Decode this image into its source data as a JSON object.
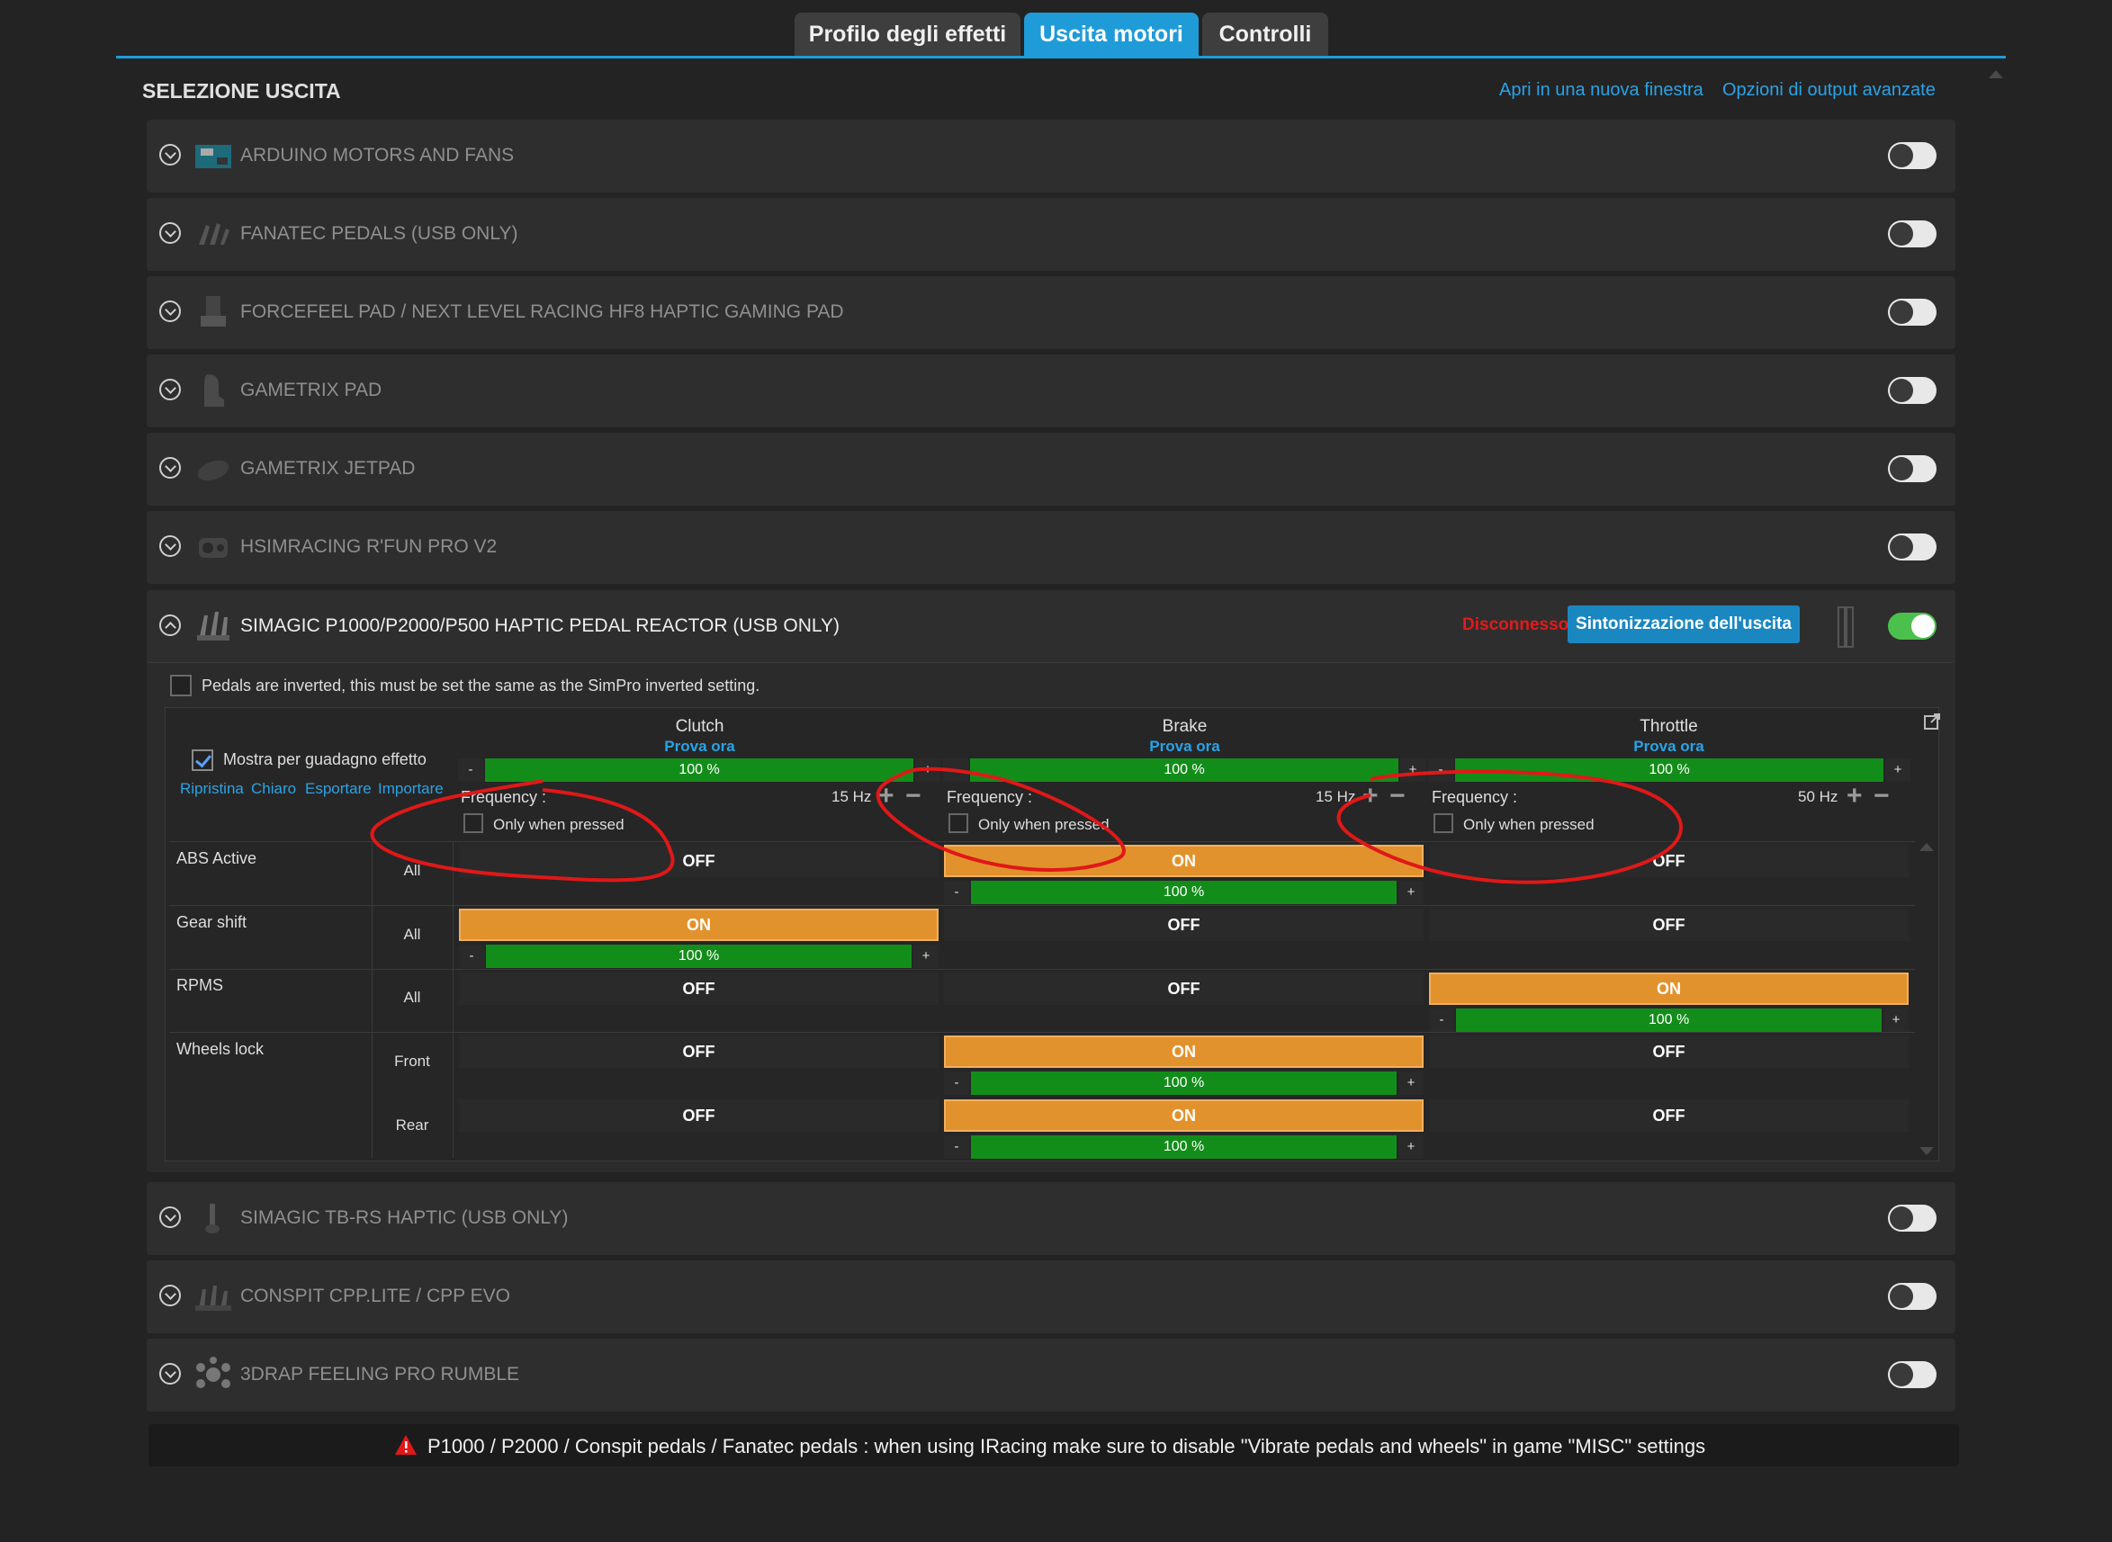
{
  "tabs": [
    {
      "label": "Profilo degli effetti"
    },
    {
      "label": "Uscita motori",
      "active": true
    },
    {
      "label": "Controlli"
    }
  ],
  "section": {
    "title": "SELEZIONE USCITA",
    "link_new_window": "Apri in una nuova finestra",
    "link_advanced": "Opzioni di output avanzate"
  },
  "devices_top": [
    {
      "name": "ARDUINO MOTORS AND FANS",
      "enabled": false
    },
    {
      "name": "FANATEC PEDALS (USB ONLY)",
      "enabled": false
    },
    {
      "name": "FORCEFEEL PAD / NEXT LEVEL RACING HF8 HAPTIC GAMING PAD",
      "enabled": false
    },
    {
      "name": "GAMETRIX PAD",
      "enabled": false
    },
    {
      "name": "GAMETRIX JETPAD",
      "enabled": false
    },
    {
      "name": "HSIMRACING R'FUN PRO V2",
      "enabled": false
    }
  ],
  "expanded_device": {
    "name": "SIMAGIC P1000/P2000/P500 HAPTIC PEDAL REACTOR (USB ONLY)",
    "status": "Disconnesso",
    "tune_button": "Sintonizzazione dell'uscita",
    "enabled": true,
    "inverted_label": "Pedals are inverted, this must be set the same as the SimPro inverted setting.",
    "show_gain_label": "Mostra per guadagno effetto",
    "links": [
      "Ripristina",
      "Chiaro",
      "Esportare",
      "Importare"
    ],
    "columns": [
      {
        "name": "Clutch",
        "test": "Prova ora",
        "gain": "100 %",
        "freq_label": "Frequency :",
        "freq": "15 Hz",
        "only_pressed": "Only when pressed"
      },
      {
        "name": "Brake",
        "test": "Prova ora",
        "gain": "100 %",
        "freq_label": "Frequency :",
        "freq": "15 Hz",
        "only_pressed": "Only when pressed"
      },
      {
        "name": "Throttle",
        "test": "Prova ora",
        "gain": "100 %",
        "freq_label": "Frequency :",
        "freq": "50 Hz",
        "only_pressed": "Only when pressed"
      }
    ],
    "rows": [
      {
        "effect": "ABS Active",
        "scope": "All",
        "cells": [
          "OFF",
          "ON",
          "OFF"
        ],
        "gains": [
          "",
          "100 %",
          ""
        ]
      },
      {
        "effect": "Gear shift",
        "scope": "All",
        "cells": [
          "ON",
          "OFF",
          "OFF"
        ],
        "gains": [
          "100 %",
          "",
          ""
        ]
      },
      {
        "effect": "RPMS",
        "scope": "All",
        "cells": [
          "OFF",
          "OFF",
          "ON"
        ],
        "gains": [
          "",
          "",
          "100 %"
        ]
      },
      {
        "effect": "Wheels lock",
        "scope": "Front",
        "cells": [
          "OFF",
          "ON",
          "OFF"
        ],
        "gains": [
          "",
          "100 %",
          ""
        ]
      },
      {
        "effect": "",
        "scope": "Rear",
        "cells": [
          "OFF",
          "ON",
          "OFF"
        ],
        "gains": [
          "",
          "100 %",
          ""
        ]
      }
    ],
    "slider_minus": "-",
    "slider_plus": "+"
  },
  "devices_bottom": [
    {
      "name": "SIMAGIC TB-RS HAPTIC (USB ONLY)",
      "enabled": false
    },
    {
      "name": "CONSPIT CPP.LITE / CPP EVO",
      "enabled": false
    },
    {
      "name": "3DRAP FEELING PRO RUMBLE",
      "enabled": false
    }
  ],
  "warning": "P1000 / P2000 / Conspit pedals / Fanatec pedals : when using IRacing make sure to disable \"Vibrate pedals and wheels\" in game \"MISC\" settings",
  "colors": {
    "accent": "#1f9bd7",
    "on": "#e2922c",
    "gain": "#138d1a",
    "toggle_on": "#4cc04c",
    "status_error": "#e21b1b"
  }
}
